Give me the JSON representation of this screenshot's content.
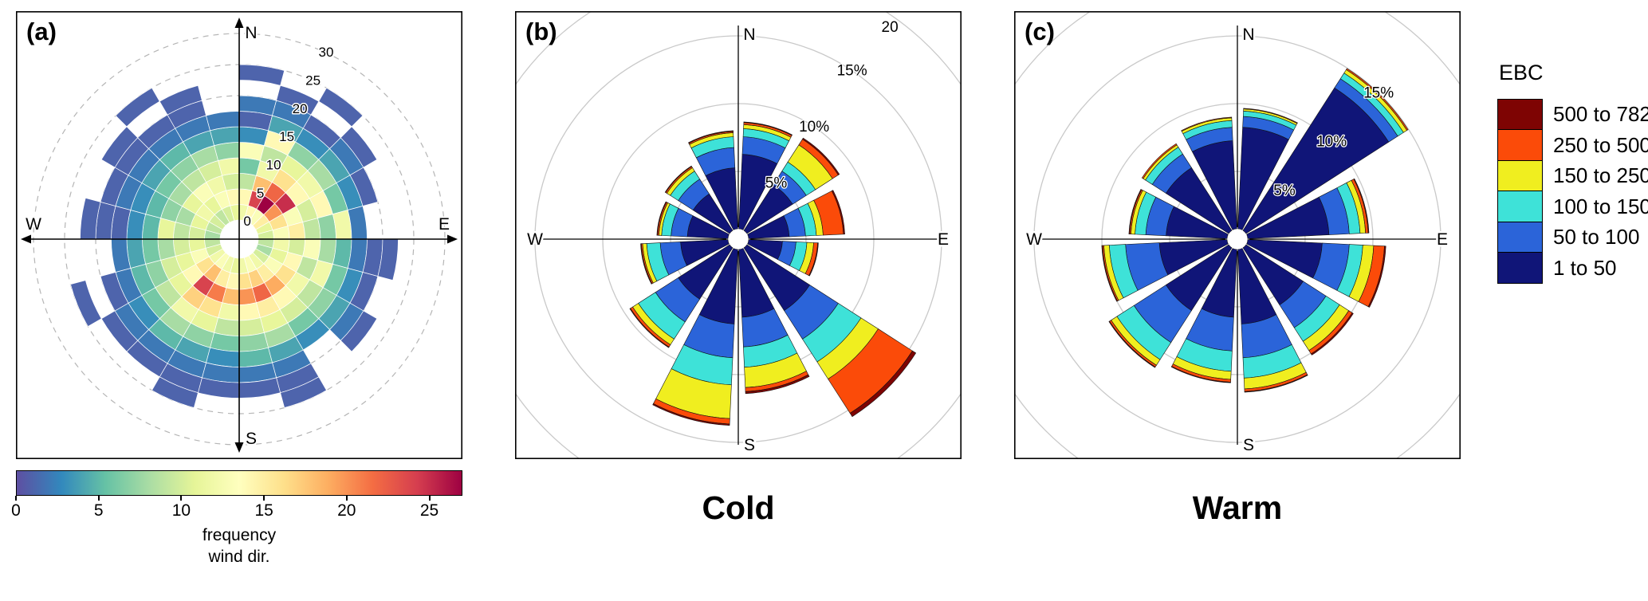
{
  "figure": {
    "background": "#ffffff",
    "panel_letters": {
      "a": "(a)",
      "b": "(b)",
      "c": "(c)"
    }
  },
  "legend": {
    "title": "EBC",
    "entries": [
      {
        "label": "500 to 782",
        "color": "#7e0403"
      },
      {
        "label": "250 to 500",
        "color": "#fb4b09"
      },
      {
        "label": "150 to 250",
        "color": "#f0ee1f"
      },
      {
        "label": "100 to 150",
        "color": "#3ee2d8"
      },
      {
        "label": "50 to 100",
        "color": "#2b64d9"
      },
      {
        "label": "1 to 50",
        "color": "#101578"
      }
    ]
  },
  "colorbar": {
    "label_line1": "frequency",
    "label_line2": "wind dir.",
    "ticks": [
      0,
      5,
      10,
      15,
      20,
      25
    ],
    "max": 27,
    "colors": [
      "#5e4fa2",
      "#3288bd",
      "#66c2a5",
      "#abdda4",
      "#e6f598",
      "#ffffbf",
      "#fee08b",
      "#fdae61",
      "#f46d43",
      "#d53e4f",
      "#9e0142"
    ]
  },
  "chart_data": [
    {
      "id": "a",
      "type": "heatmap",
      "coordinate": "polar",
      "compass": {
        "n": "N",
        "e": "E",
        "s": "S",
        "w": "W"
      },
      "radial_ticks": [
        0,
        5,
        10,
        15,
        20,
        25,
        30
      ],
      "radial_range": [
        0,
        30
      ],
      "direction_bin_deg": 15,
      "radial_bin": 2.5,
      "value_label": "frequency wind dir.",
      "value_range": [
        0,
        27
      ],
      "colormap": [
        "#5e4fa2",
        "#3288bd",
        "#66c2a5",
        "#abdda4",
        "#e6f598",
        "#ffffbf",
        "#fee08b",
        "#fdae61",
        "#f46d43",
        "#d53e4f",
        "#9e0142"
      ],
      "matrix": [
        [
          12,
          14,
          9,
          6,
          13,
          3,
          1,
          2,
          null,
          1,
          null,
          null
        ],
        [
          14,
          24,
          18,
          12,
          9,
          14,
          4,
          2,
          1,
          null,
          null,
          null
        ],
        [
          13,
          27,
          22,
          16,
          11,
          7,
          3,
          1,
          null,
          1,
          null,
          null
        ],
        [
          15,
          20,
          25,
          14,
          12,
          8,
          4,
          2,
          1,
          null,
          null,
          null
        ],
        [
          11,
          16,
          13,
          10,
          14,
          6,
          3,
          1,
          null,
          null,
          null,
          null
        ],
        [
          10,
          13,
          15,
          9,
          7,
          12,
          2,
          null,
          null,
          null,
          null,
          null
        ],
        [
          9,
          12,
          10,
          13,
          8,
          5,
          2,
          1,
          1,
          null,
          null,
          null
        ],
        [
          8,
          11,
          14,
          9,
          12,
          6,
          3,
          1,
          null,
          null,
          null,
          null
        ],
        [
          10,
          13,
          16,
          12,
          9,
          7,
          4,
          2,
          1,
          null,
          null,
          null
        ],
        [
          12,
          15,
          19,
          14,
          10,
          6,
          3,
          null,
          null,
          null,
          null,
          null
        ],
        [
          13,
          17,
          22,
          15,
          11,
          8,
          4,
          2,
          1,
          1,
          null,
          null
        ],
        [
          12,
          16,
          20,
          14,
          10,
          7,
          5,
          2,
          1,
          null,
          null,
          null
        ],
        [
          11,
          14,
          18,
          12,
          9,
          6,
          3,
          2,
          1,
          null,
          null,
          null
        ],
        [
          12,
          15,
          21,
          16,
          11,
          7,
          4,
          2,
          1,
          1,
          null,
          null
        ],
        [
          13,
          18,
          24,
          17,
          12,
          8,
          5,
          2,
          1,
          null,
          null,
          null
        ],
        [
          12,
          16,
          14,
          11,
          9,
          6,
          3,
          2,
          1,
          null,
          null,
          null
        ],
        [
          10,
          13,
          11,
          10,
          7,
          5,
          2,
          1,
          null,
          1,
          null,
          null
        ],
        [
          9,
          11,
          10,
          8,
          6,
          4,
          2,
          null,
          null,
          null,
          null,
          null
        ],
        [
          8,
          10,
          9,
          11,
          5,
          3,
          1,
          1,
          1,
          null,
          null,
          null
        ],
        [
          9,
          11,
          8,
          7,
          5,
          3,
          2,
          1,
          null,
          null,
          null,
          null
        ],
        [
          10,
          12,
          11,
          8,
          6,
          4,
          2,
          1,
          1,
          null,
          null,
          null
        ],
        [
          9,
          11,
          13,
          9,
          7,
          5,
          2,
          1,
          null,
          1,
          null,
          null
        ],
        [
          10,
          13,
          12,
          10,
          8,
          4,
          2,
          1,
          1,
          null,
          null,
          null
        ],
        [
          11,
          14,
          10,
          12,
          7,
          4,
          2,
          null,
          null,
          null,
          null,
          null
        ]
      ]
    },
    {
      "id": "b",
      "type": "windrose",
      "title": "Cold",
      "compass": {
        "n": "N",
        "e": "E",
        "s": "S",
        "w": "W"
      },
      "rings_pct": [
        5,
        10,
        15,
        20
      ],
      "ring_labels": [
        "5%",
        "10%",
        "15%",
        "20"
      ],
      "categories": [
        "1 to 50",
        "50 to 100",
        "100 to 150",
        "150 to 250",
        "250 to 500",
        "500 to 782"
      ],
      "colors": [
        "#101578",
        "#2b64d9",
        "#3ee2d8",
        "#f0ee1f",
        "#fb4b09",
        "#7e0403"
      ],
      "petal_centers_deg": [
        15,
        45,
        75,
        105,
        135,
        165,
        195,
        225,
        255,
        285,
        315,
        345
      ],
      "petals_pct": [
        [
          5.5,
          1.3,
          0.6,
          0.3,
          0.15,
          0.05
        ],
        [
          4.0,
          1.2,
          0.8,
          1.5,
          0.5,
          0.1
        ],
        [
          3.0,
          1.2,
          0.8,
          0.5,
          1.5,
          0.1
        ],
        [
          2.5,
          1.0,
          0.8,
          0.5,
          0.3,
          0.05
        ],
        [
          5.5,
          2.5,
          2.0,
          1.5,
          3.0,
          0.3
        ],
        [
          5.0,
          2.2,
          1.5,
          1.5,
          0.3,
          0.15
        ],
        [
          5.5,
          2.5,
          2.0,
          2.5,
          0.4,
          0.1
        ],
        [
          4.5,
          2.0,
          1.5,
          0.5,
          0.2,
          0.05
        ],
        [
          3.5,
          1.5,
          1.0,
          0.3,
          0.1,
          0.05
        ],
        [
          3.0,
          1.2,
          0.7,
          0.2,
          0.1,
          0.05
        ],
        [
          3.2,
          1.3,
          0.7,
          0.3,
          0.1,
          0.05
        ],
        [
          4.5,
          1.5,
          0.8,
          0.3,
          0.1,
          0.05
        ]
      ]
    },
    {
      "id": "c",
      "type": "windrose",
      "title": "Warm",
      "compass": {
        "n": "N",
        "e": "E",
        "s": "S",
        "w": "W"
      },
      "rings_pct": [
        5,
        10,
        15,
        20
      ],
      "ring_labels": [
        "5%",
        "10%",
        "15%"
      ],
      "categories": [
        "1 to 50",
        "50 to 100",
        "100 to 150",
        "150 to 250",
        "250 to 500",
        "500 to 782"
      ],
      "colors": [
        "#101578",
        "#2b64d9",
        "#3ee2d8",
        "#f0ee1f",
        "#fb4b09",
        "#7e0403"
      ],
      "petal_centers_deg": [
        15,
        45,
        75,
        105,
        135,
        165,
        195,
        225,
        255,
        285,
        315,
        345
      ],
      "petals_pct": [
        [
          7.5,
          0.8,
          0.4,
          0.15,
          0.05,
          0
        ],
        [
          12.5,
          0.8,
          0.5,
          0.3,
          0.1,
          0
        ],
        [
          6.0,
          1.5,
          0.8,
          0.4,
          0.2,
          0.05
        ],
        [
          5.5,
          2.0,
          1.0,
          0.8,
          0.8,
          0.1
        ],
        [
          5.0,
          2.0,
          1.2,
          0.8,
          0.3,
          0.1
        ],
        [
          5.5,
          2.5,
          1.5,
          0.8,
          0.2,
          0.05
        ],
        [
          5.0,
          2.5,
          1.5,
          0.6,
          0.2,
          0.05
        ],
        [
          5.5,
          2.8,
          1.5,
          0.5,
          0.15,
          0.05
        ],
        [
          5.0,
          2.5,
          1.2,
          0.4,
          0.1,
          0.05
        ],
        [
          4.5,
          1.5,
          0.8,
          0.3,
          0.1,
          0.05
        ],
        [
          5.5,
          1.2,
          0.6,
          0.2,
          0.1,
          0
        ],
        [
          6.5,
          1.0,
          0.5,
          0.2,
          0.05,
          0
        ]
      ]
    }
  ]
}
